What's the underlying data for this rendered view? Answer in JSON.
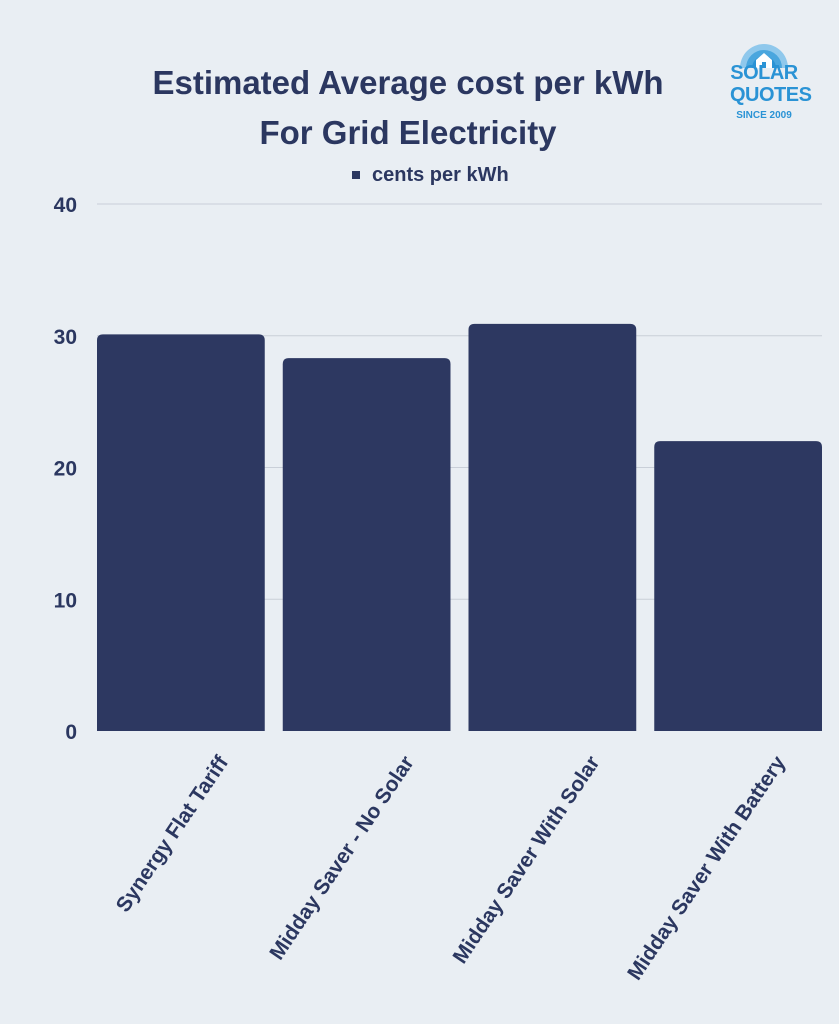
{
  "chart_data": {
    "type": "bar",
    "title_lines": [
      "Estimated Average cost per kWh",
      "For Grid Electricity"
    ],
    "legend": "cents per kWh",
    "categories": [
      "Synergy Flat Tariff",
      "Midday Saver - No Solar",
      "Midday Saver With Solar",
      "Midday Saver With Battery"
    ],
    "series": [
      {
        "name": "cents per kWh",
        "values": [
          30.1,
          28.3,
          30.9,
          22.0
        ]
      }
    ],
    "ylim": [
      0,
      40
    ],
    "yticks": [
      0,
      10,
      20,
      30,
      40
    ],
    "grid": true,
    "legend_position": "top-center",
    "colors": {
      "bar": "#2d3861",
      "text": "#2b3760",
      "grid": "#c9cfd8",
      "background": "#e9eef3"
    }
  },
  "logo": {
    "line1": "SOLAR",
    "line2": "QUOTES",
    "line3": "SINCE 2009",
    "colors": {
      "text": "#2a93d5",
      "sun": "#7fbfe8"
    }
  }
}
